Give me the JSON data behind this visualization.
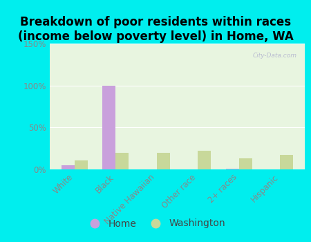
{
  "title": "Breakdown of poor residents within races\n(income below poverty level) in Home, WA",
  "categories": [
    "White",
    "Black",
    "Native Hawaiian",
    "Other race",
    "2+ races",
    "Hispanic"
  ],
  "home_values": [
    5,
    100,
    0,
    0,
    1,
    0
  ],
  "washington_values": [
    11,
    20,
    20,
    22,
    13,
    17
  ],
  "home_color": "#c9a0dc",
  "washington_color": "#c8d89a",
  "background_color": "#00eeee",
  "plot_bg_color": "#e8f5e0",
  "ylim": [
    0,
    150
  ],
  "yticks": [
    0,
    50,
    100,
    150
  ],
  "ytick_labels": [
    "0%",
    "50%",
    "100%",
    "150%"
  ],
  "legend_home": "Home",
  "legend_washington": "Washington",
  "title_fontsize": 12,
  "tick_fontsize": 8.5,
  "watermark": "City-Data.com"
}
